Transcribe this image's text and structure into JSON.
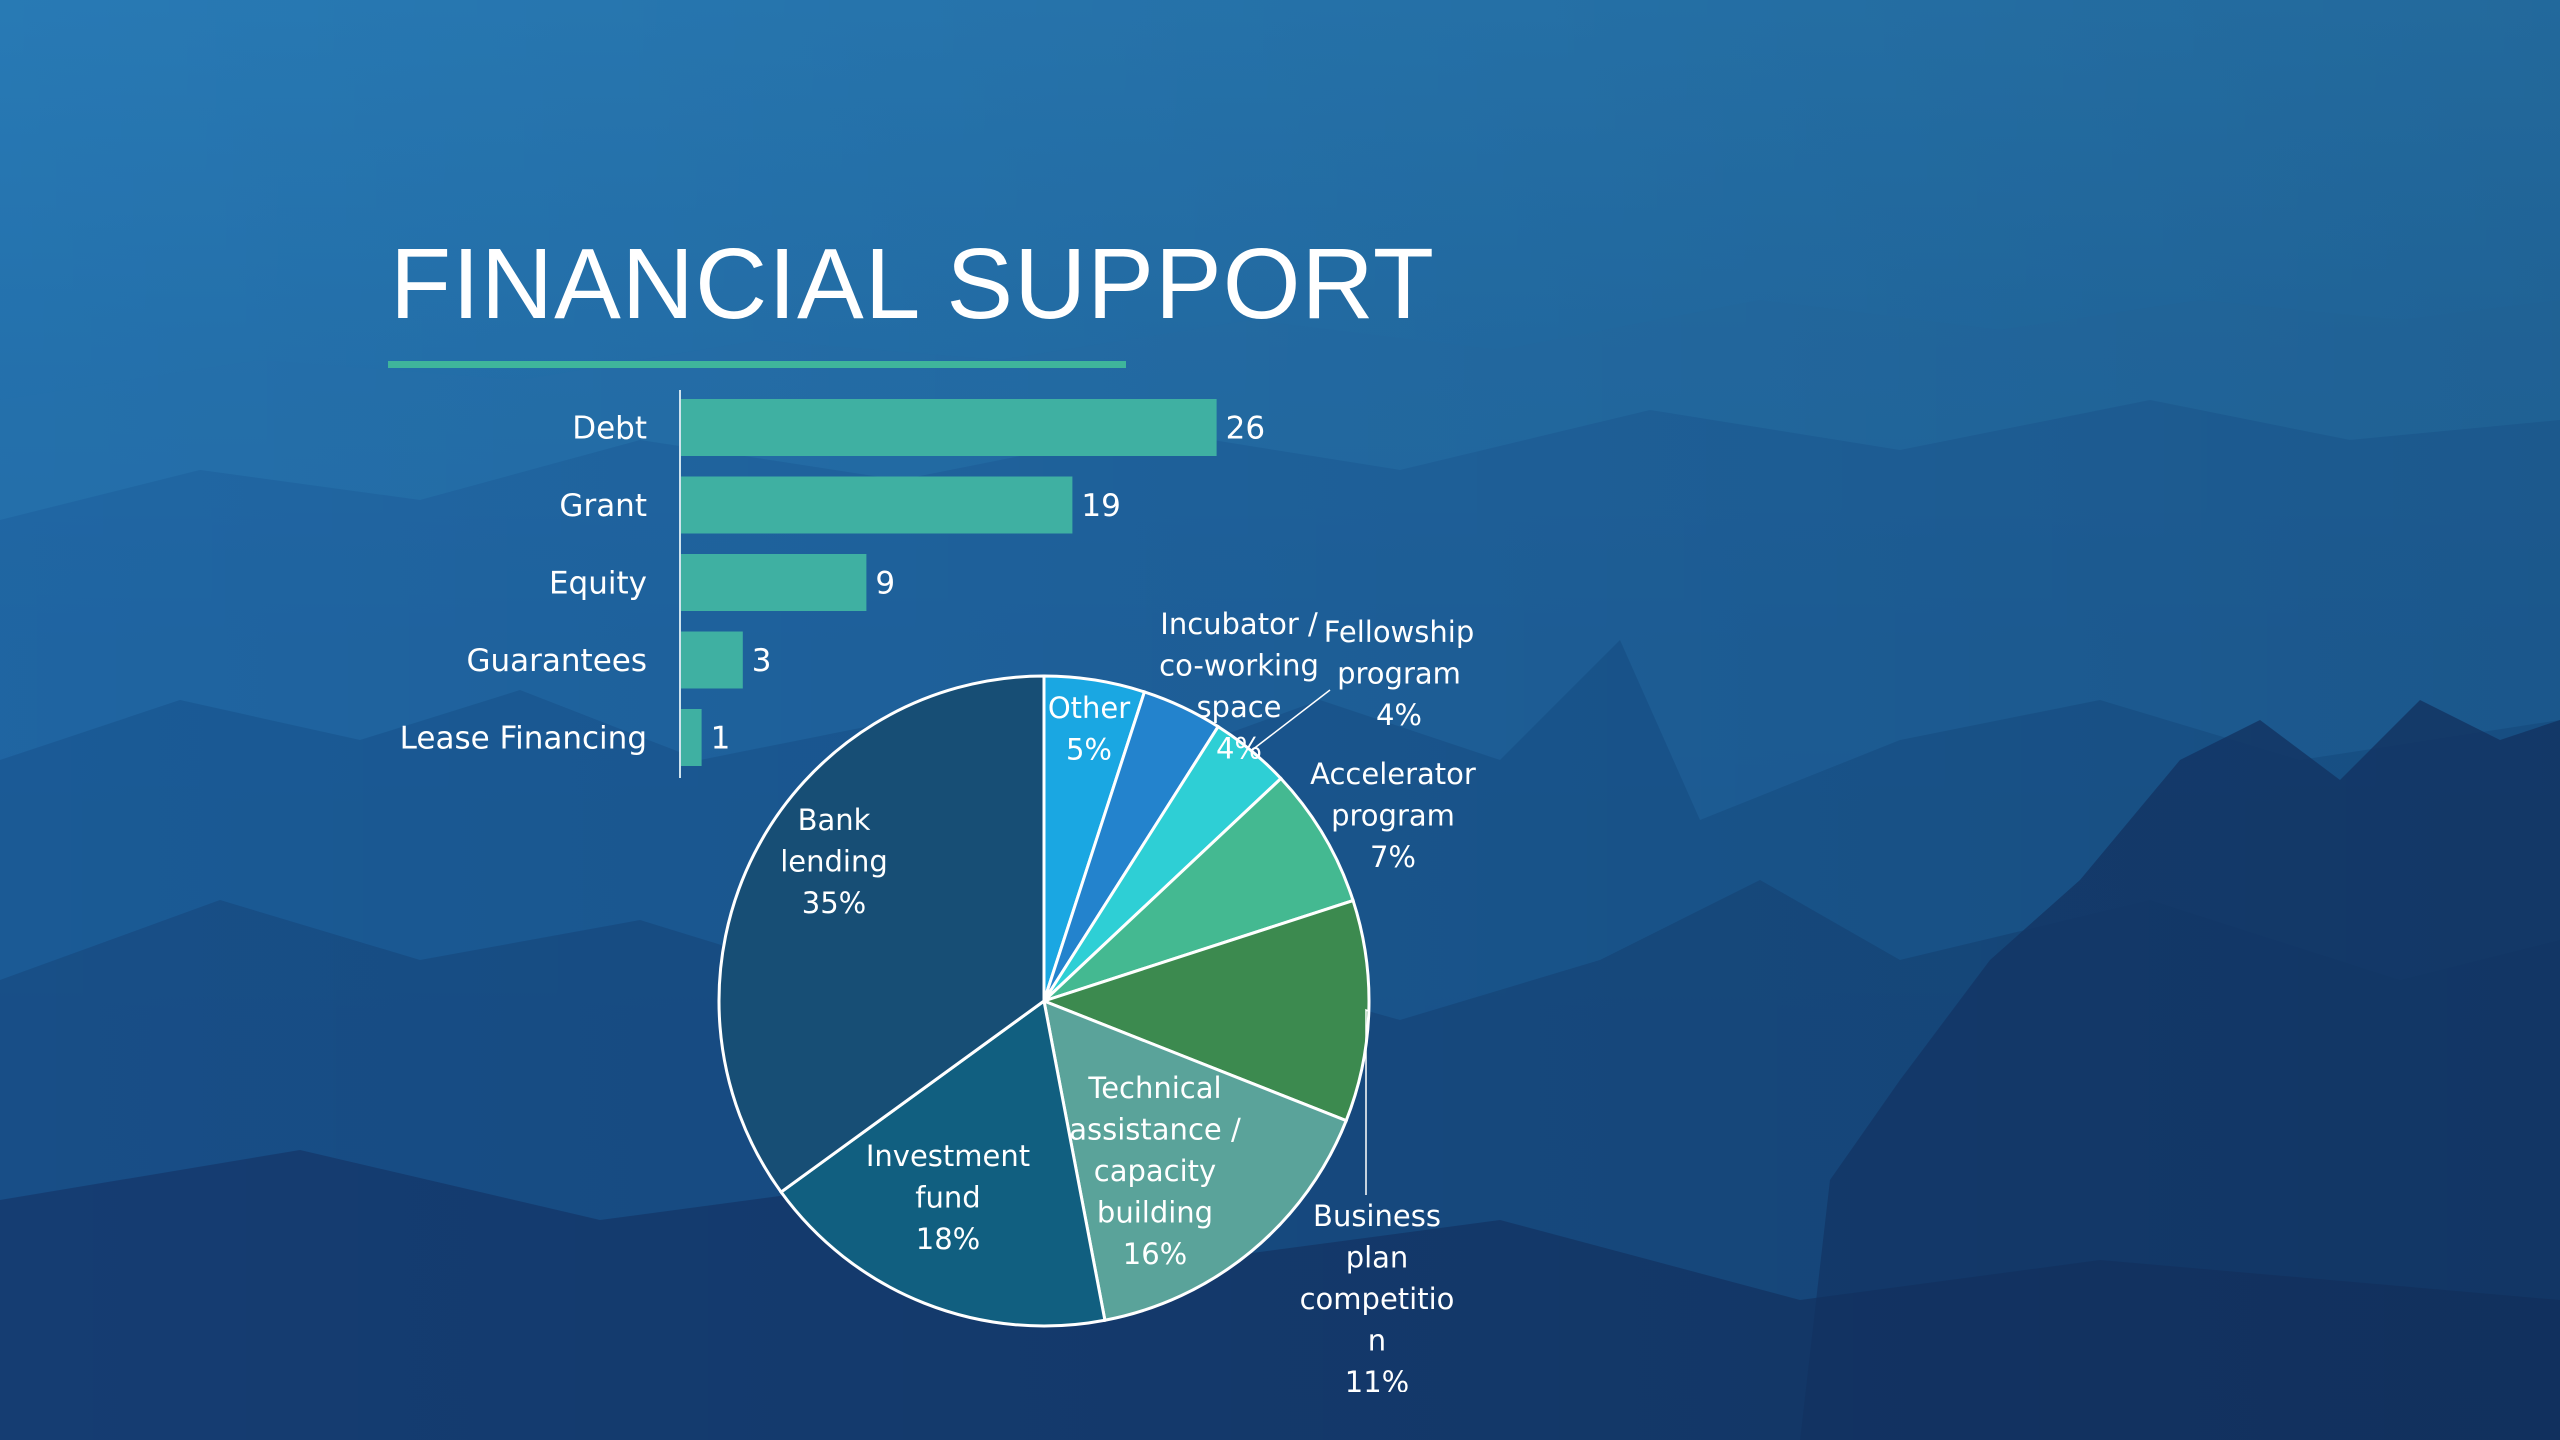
{
  "slide": {
    "title": "FINANCIAL SUPPORT"
  },
  "colors": {
    "background_top": "#2a7fbd",
    "background_bottom": "#173f7e",
    "accent": "#3fb59b",
    "text": "#ffffff"
  },
  "chart_data": [
    {
      "type": "bar",
      "orientation": "horizontal",
      "title": "",
      "categories": [
        "Debt",
        "Grant",
        "Equity",
        "Guarantees",
        "Lease Financing"
      ],
      "values": [
        26,
        19,
        9,
        3,
        1
      ],
      "bar_color": "#3fb0a2",
      "data_labels": true,
      "grid": false
    },
    {
      "type": "pie",
      "title": "",
      "slices": [
        {
          "label": "Other",
          "value": 5,
          "display": "5%",
          "color": "#1aa7e2"
        },
        {
          "label": "Incubator / co-working space",
          "value": 4,
          "display": "4%",
          "color": "#2383cd"
        },
        {
          "label": "Fellowship program",
          "value": 4,
          "display": "4%",
          "color": "#2ecfd5"
        },
        {
          "label": "Accelerator program",
          "value": 7,
          "display": "7%",
          "color": "#44b991"
        },
        {
          "label": "Business plan competition",
          "value": 11,
          "display": "11%",
          "color": "#3c8a4f"
        },
        {
          "label": "Technical assistance / capacity building",
          "value": 16,
          "display": "16%",
          "color": "#5aa39a"
        },
        {
          "label": "Investment fund",
          "value": 18,
          "display": "18%",
          "color": "#115f80"
        },
        {
          "label": "Bank lending",
          "value": 35,
          "display": "35%",
          "color": "#174e75"
        }
      ],
      "label_text": {
        "other": [
          "Other",
          "5%"
        ],
        "incubator": [
          "Incubator /",
          "co-working",
          "space",
          "4%"
        ],
        "fellowship": [
          "Fellowship",
          "program",
          "4%"
        ],
        "accelerator": [
          "Accelerator",
          "program",
          "7%"
        ],
        "business_plan": [
          "Business",
          "plan",
          "competitio",
          "n",
          "11%"
        ],
        "technical": [
          "Technical",
          "assistance /",
          "capacity",
          "building",
          "16%"
        ],
        "investment": [
          "Investment",
          "fund",
          "18%"
        ],
        "bank": [
          "Bank",
          "lending",
          "35%"
        ]
      }
    }
  ]
}
